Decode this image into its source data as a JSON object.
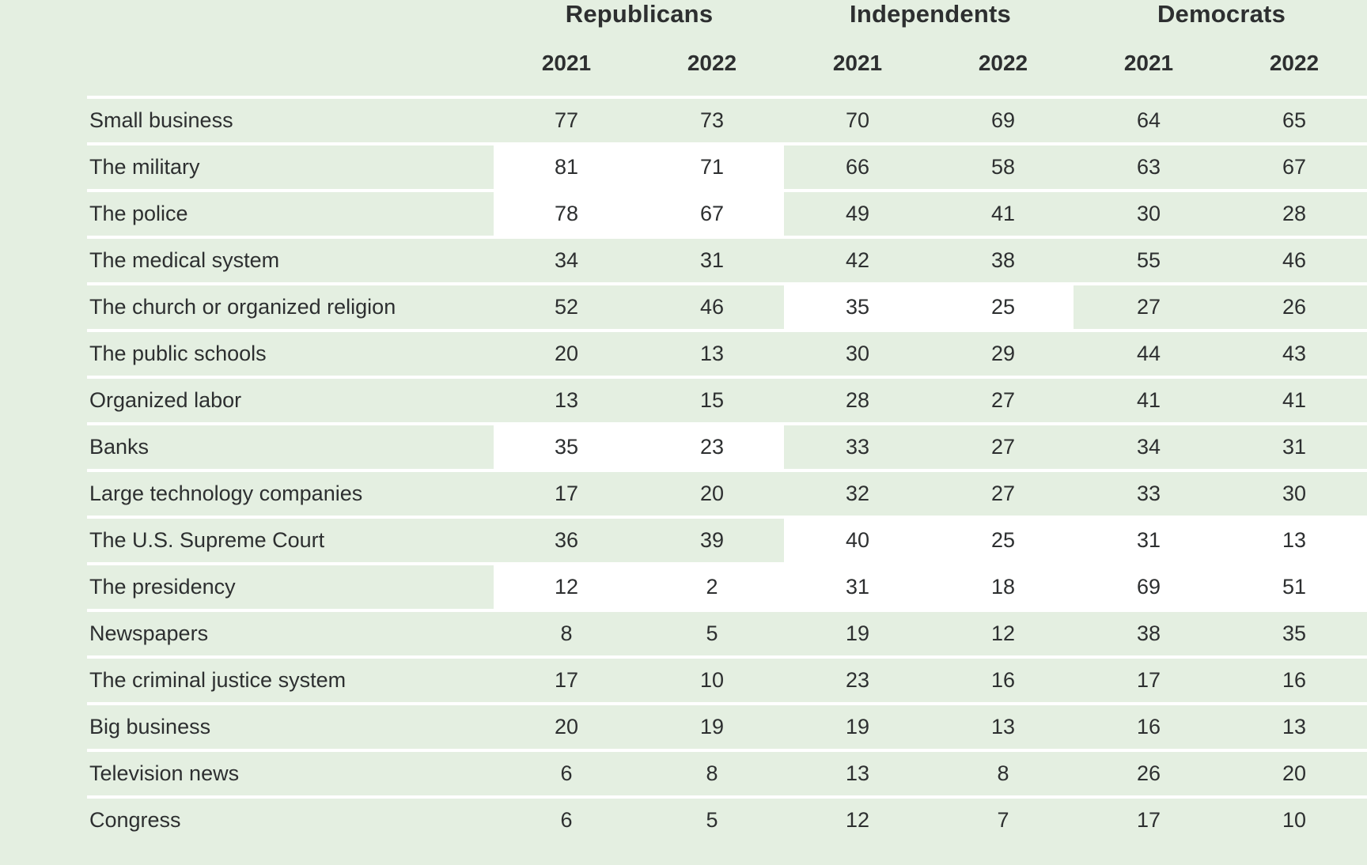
{
  "page": {
    "background_color": "#e4efe1",
    "highlight_color": "#ffffff",
    "text_color": "#2d2f30"
  },
  "table": {
    "group_headers": [
      "Republicans",
      "Independents",
      "Democrats"
    ],
    "year_headers": [
      "2021",
      "2022",
      "2021",
      "2022",
      "2021",
      "2022"
    ],
    "rows": [
      {
        "label": "Small business",
        "values": [
          "77",
          "73",
          "70",
          "69",
          "64",
          "65"
        ],
        "highlight_groups": []
      },
      {
        "label": "The military",
        "values": [
          "81",
          "71",
          "66",
          "58",
          "63",
          "67"
        ],
        "highlight_groups": [
          "republicans"
        ]
      },
      {
        "label": "The police",
        "values": [
          "78",
          "67",
          "49",
          "41",
          "30",
          "28"
        ],
        "highlight_groups": [
          "republicans"
        ]
      },
      {
        "label": "The medical system",
        "values": [
          "34",
          "31",
          "42",
          "38",
          "55",
          "46"
        ],
        "highlight_groups": []
      },
      {
        "label": "The church or organized religion",
        "values": [
          "52",
          "46",
          "35",
          "25",
          "27",
          "26"
        ],
        "highlight_groups": [
          "independents"
        ]
      },
      {
        "label": "The public schools",
        "values": [
          "20",
          "13",
          "30",
          "29",
          "44",
          "43"
        ],
        "highlight_groups": []
      },
      {
        "label": "Organized labor",
        "values": [
          "13",
          "15",
          "28",
          "27",
          "41",
          "41"
        ],
        "highlight_groups": []
      },
      {
        "label": "Banks",
        "values": [
          "35",
          "23",
          "33",
          "27",
          "34",
          "31"
        ],
        "highlight_groups": [
          "republicans"
        ]
      },
      {
        "label": "Large technology companies",
        "values": [
          "17",
          "20",
          "32",
          "27",
          "33",
          "30"
        ],
        "highlight_groups": []
      },
      {
        "label": "The U.S. Supreme Court",
        "values": [
          "36",
          "39",
          "40",
          "25",
          "31",
          "13"
        ],
        "highlight_groups": [
          "independents",
          "democrats"
        ]
      },
      {
        "label": "The presidency",
        "values": [
          "12",
          "2",
          "31",
          "18",
          "69",
          "51"
        ],
        "highlight_groups": [
          "republicans",
          "independents",
          "democrats"
        ]
      },
      {
        "label": "Newspapers",
        "values": [
          "8",
          "5",
          "19",
          "12",
          "38",
          "35"
        ],
        "highlight_groups": []
      },
      {
        "label": "The criminal justice system",
        "values": [
          "17",
          "10",
          "23",
          "16",
          "17",
          "16"
        ],
        "highlight_groups": []
      },
      {
        "label": "Big business",
        "values": [
          "20",
          "19",
          "19",
          "13",
          "16",
          "13"
        ],
        "highlight_groups": []
      },
      {
        "label": "Television news",
        "values": [
          "6",
          "8",
          "13",
          "8",
          "26",
          "20"
        ],
        "highlight_groups": []
      },
      {
        "label": "Congress",
        "values": [
          "6",
          "5",
          "12",
          "7",
          "17",
          "10"
        ],
        "highlight_groups": []
      }
    ]
  },
  "chart_data": {
    "type": "table",
    "title": "",
    "categories": [
      "Small business",
      "The military",
      "The police",
      "The medical system",
      "The church or organized religion",
      "The public schools",
      "Organized labor",
      "Banks",
      "Large technology companies",
      "The U.S. Supreme Court",
      "The presidency",
      "Newspapers",
      "The criminal justice system",
      "Big business",
      "Television news",
      "Congress"
    ],
    "series": [
      {
        "name": "Republicans 2021",
        "values": [
          77,
          81,
          78,
          34,
          52,
          20,
          13,
          35,
          17,
          36,
          12,
          8,
          17,
          20,
          6,
          6
        ]
      },
      {
        "name": "Republicans 2022",
        "values": [
          73,
          71,
          67,
          31,
          46,
          13,
          15,
          23,
          20,
          39,
          2,
          5,
          10,
          19,
          8,
          5
        ]
      },
      {
        "name": "Independents 2021",
        "values": [
          70,
          66,
          49,
          42,
          35,
          30,
          28,
          33,
          32,
          40,
          31,
          19,
          23,
          19,
          13,
          12
        ]
      },
      {
        "name": "Independents 2022",
        "values": [
          69,
          58,
          41,
          38,
          25,
          29,
          27,
          27,
          27,
          25,
          18,
          12,
          16,
          13,
          8,
          7
        ]
      },
      {
        "name": "Democrats 2021",
        "values": [
          64,
          63,
          30,
          55,
          27,
          44,
          41,
          34,
          33,
          31,
          69,
          38,
          17,
          16,
          26,
          17
        ]
      },
      {
        "name": "Democrats 2022",
        "values": [
          65,
          67,
          28,
          46,
          26,
          43,
          41,
          31,
          30,
          13,
          51,
          35,
          16,
          13,
          20,
          10
        ]
      }
    ],
    "layout": {
      "legend_position": "none",
      "grid": "white horizontal separators between rows",
      "highlighted_cells_background": "#ffffff",
      "highlighted_row_groups": [
        {
          "row": "The military",
          "groups": [
            "Republicans"
          ]
        },
        {
          "row": "The police",
          "groups": [
            "Republicans"
          ]
        },
        {
          "row": "The church or organized religion",
          "groups": [
            "Independents"
          ]
        },
        {
          "row": "Banks",
          "groups": [
            "Republicans"
          ]
        },
        {
          "row": "The U.S. Supreme Court",
          "groups": [
            "Independents",
            "Democrats"
          ]
        },
        {
          "row": "The presidency",
          "groups": [
            "Republicans",
            "Independents",
            "Democrats"
          ]
        }
      ]
    }
  }
}
